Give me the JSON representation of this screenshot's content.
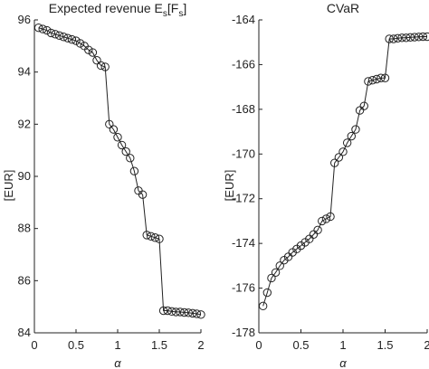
{
  "chart_data": [
    {
      "type": "line",
      "title_main": "Expected revenue E",
      "title_sub1": "s",
      "title_mid": "[F",
      "title_sub2": "s",
      "title_end": "]",
      "ylabel": "[EUR]",
      "xlabel": "α",
      "xlim": [
        0,
        2
      ],
      "ylim": [
        84,
        96
      ],
      "xticks": [
        0,
        0.5,
        1,
        1.5,
        2
      ],
      "xtick_labels": [
        "0",
        "0.5",
        "1",
        "1.5",
        "2"
      ],
      "yticks": [
        84,
        86,
        88,
        90,
        92,
        94,
        96
      ],
      "ytick_labels": [
        "84",
        "86",
        "88",
        "90",
        "92",
        "94",
        "96"
      ],
      "marker": "open-circle",
      "series": [
        {
          "x": [
            0.05,
            0.1,
            0.15,
            0.2,
            0.25,
            0.3,
            0.35,
            0.4,
            0.45,
            0.5,
            0.55,
            0.6,
            0.65,
            0.7,
            0.75,
            0.8,
            0.85,
            0.9,
            0.95,
            1.0,
            1.05,
            1.1,
            1.15,
            1.2,
            1.25,
            1.3,
            1.35,
            1.4,
            1.45,
            1.5,
            1.55,
            1.6,
            1.65,
            1.7,
            1.75,
            1.8,
            1.85,
            1.9,
            1.95,
            2.0
          ],
          "y": [
            95.7,
            95.65,
            95.6,
            95.5,
            95.45,
            95.4,
            95.35,
            95.3,
            95.25,
            95.2,
            95.1,
            95.0,
            94.85,
            94.75,
            94.45,
            94.25,
            94.2,
            92.0,
            91.8,
            91.5,
            91.2,
            90.95,
            90.7,
            90.2,
            89.45,
            89.3,
            87.75,
            87.7,
            87.65,
            87.6,
            84.85,
            84.85,
            84.82,
            84.8,
            84.8,
            84.78,
            84.77,
            84.75,
            84.73,
            84.7
          ]
        }
      ]
    },
    {
      "type": "line",
      "title": "CVaR",
      "ylabel": "[EUR]",
      "xlabel": "α",
      "xlim": [
        0,
        2
      ],
      "ylim": [
        -178,
        -164
      ],
      "xticks": [
        0,
        0.5,
        1,
        1.5,
        2
      ],
      "xtick_labels": [
        "0",
        "0.5",
        "1",
        "1.5",
        "2"
      ],
      "yticks": [
        -178,
        -176,
        -174,
        -172,
        -170,
        -168,
        -166,
        -164
      ],
      "ytick_labels": [
        "-178",
        "-176",
        "-174",
        "-172",
        "-170",
        "-168",
        "-166",
        "-164"
      ],
      "marker": "open-circle",
      "series": [
        {
          "x": [
            0.05,
            0.1,
            0.15,
            0.2,
            0.25,
            0.3,
            0.35,
            0.4,
            0.45,
            0.5,
            0.55,
            0.6,
            0.65,
            0.7,
            0.75,
            0.8,
            0.85,
            0.9,
            0.95,
            1.0,
            1.05,
            1.1,
            1.15,
            1.2,
            1.25,
            1.3,
            1.35,
            1.4,
            1.45,
            1.5,
            1.55,
            1.6,
            1.65,
            1.7,
            1.75,
            1.8,
            1.85,
            1.9,
            1.95,
            2.0
          ],
          "y": [
            -176.8,
            -176.2,
            -175.55,
            -175.3,
            -175.0,
            -174.75,
            -174.6,
            -174.4,
            -174.25,
            -174.1,
            -173.95,
            -173.8,
            -173.6,
            -173.4,
            -173.0,
            -172.9,
            -172.8,
            -170.4,
            -170.15,
            -169.9,
            -169.5,
            -169.2,
            -168.9,
            -168.05,
            -167.85,
            -166.75,
            -166.7,
            -166.65,
            -166.6,
            -166.6,
            -164.85,
            -164.85,
            -164.82,
            -164.8,
            -164.8,
            -164.78,
            -164.77,
            -164.76,
            -164.75,
            -164.75
          ]
        }
      ]
    }
  ]
}
